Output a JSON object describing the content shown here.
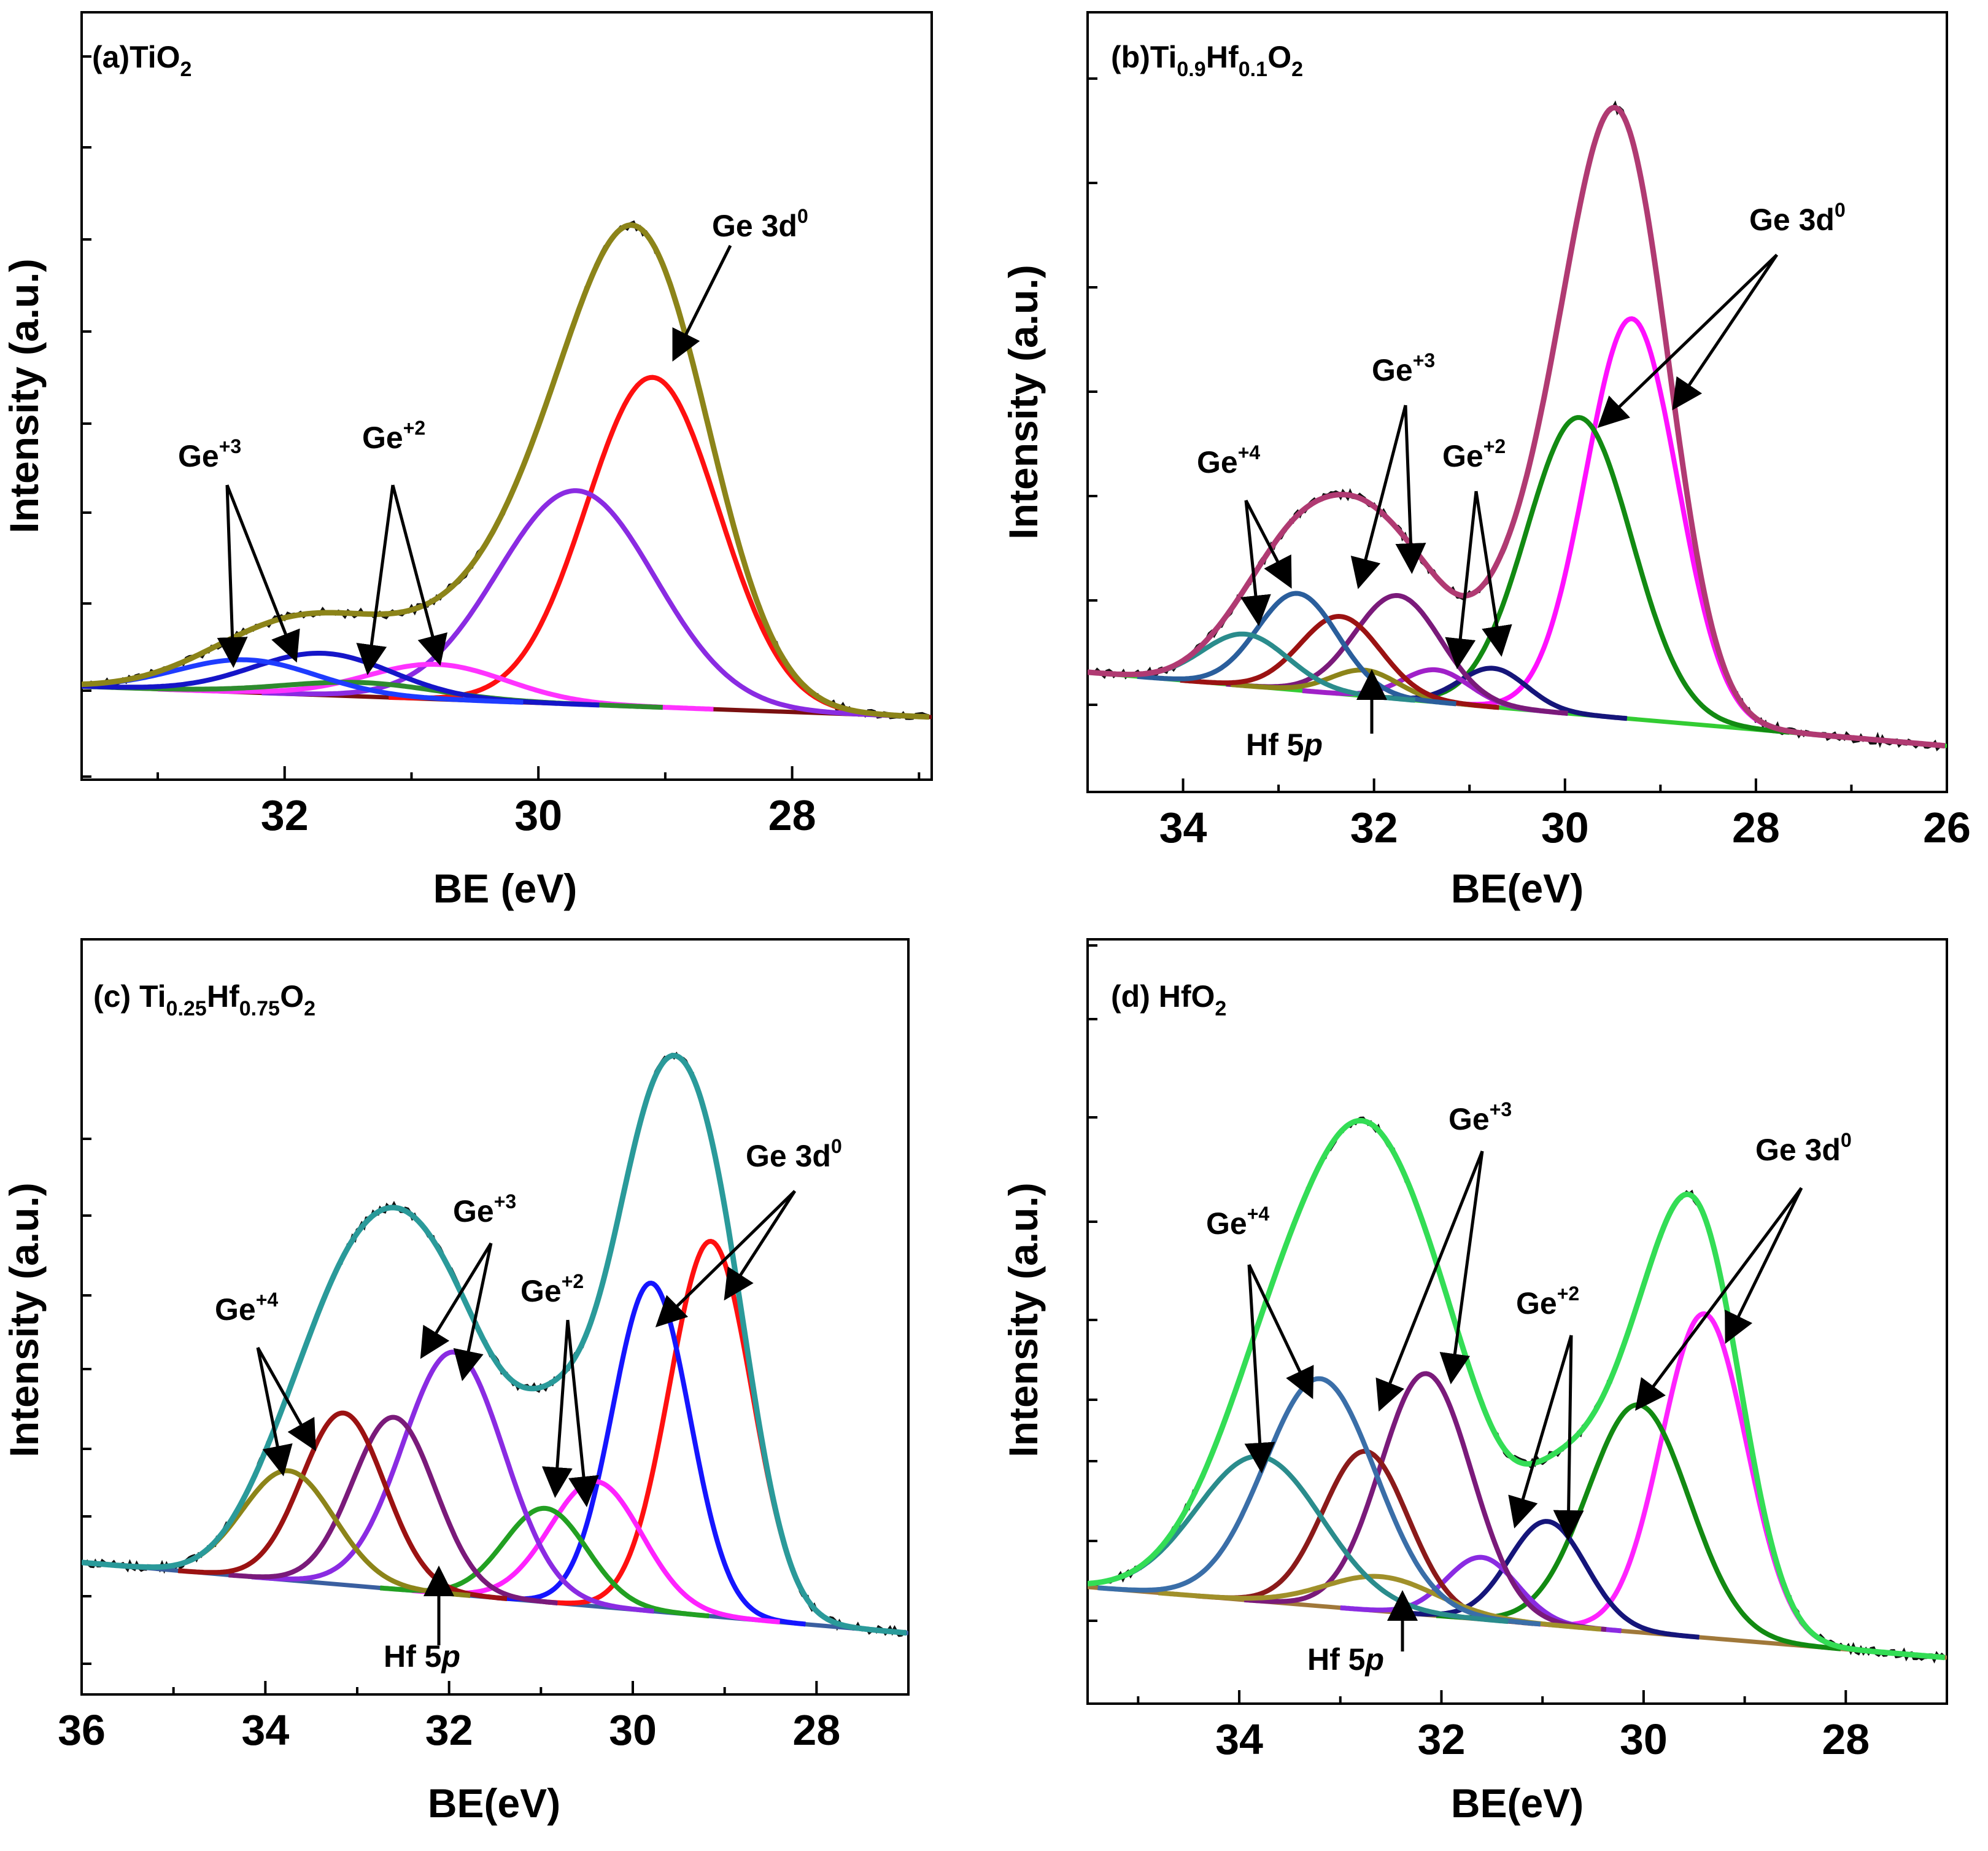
{
  "colors": {
    "data_noise": "#101010",
    "arrow": "#000000",
    "axis": "#000000"
  },
  "chart_data": [
    {
      "type": "line",
      "panel_label": "(a)TiO",
      "panel_label_sub": "2",
      "panel_label_rest": "",
      "xlabel": "BE (eV)",
      "ylabel": "Intensity (a.u.)",
      "xlim": [
        33.6,
        26.9
      ],
      "ylim": [
        0,
        100
      ],
      "xticks": [
        32,
        30,
        28
      ],
      "grid": false,
      "baseline_color": "#7a1010",
      "envelope": {
        "name": "Envelope",
        "color": "#8c8419"
      },
      "components": [
        {
          "name": "Ge 3d0",
          "center": 29.1,
          "amplitude": 71,
          "sigma": 0.52,
          "color": "#ff1010"
        },
        {
          "name": "Ge 3d0 b",
          "center": 29.7,
          "amplitude": 46,
          "sigma": 0.62,
          "color": "#8a2be2"
        },
        {
          "name": "Ge+2 a",
          "center": 30.8,
          "amplitude": 7.5,
          "sigma": 0.55,
          "color": "#ff33ff"
        },
        {
          "name": "Ge+2 b",
          "center": 31.4,
          "amplitude": 3,
          "sigma": 0.6,
          "color": "#2e8b2e"
        },
        {
          "name": "Ge+3 a",
          "center": 31.7,
          "amplitude": 9,
          "sigma": 0.55,
          "color": "#1515c8"
        },
        {
          "name": "Ge+3 b",
          "center": 32.3,
          "amplitude": 7,
          "sigma": 0.55,
          "color": "#1e3cff"
        }
      ],
      "annotations": [
        {
          "text": "Ge 3d",
          "sup": "0"
        },
        {
          "text": "Ge",
          "sup": "+3"
        },
        {
          "text": "Ge",
          "sup": "+2"
        }
      ]
    },
    {
      "type": "line",
      "panel_label": "(b)Ti",
      "panel_label_sub": "0.9",
      "panel_label_rest": "Hf",
      "panel_label_sub2": "0.1",
      "panel_label_rest2": "O",
      "panel_label_sub3": "2",
      "xlabel": "BE(eV)",
      "ylabel": "Intensity (a.u.)",
      "xlim": [
        35,
        26
      ],
      "ylim": [
        0,
        100
      ],
      "xticks": [
        34,
        32,
        30,
        28,
        26
      ],
      "grid": false,
      "baseline_color": "#33cc33",
      "envelope": {
        "name": "Envelope",
        "color": "#b03a72"
      },
      "components": [
        {
          "name": "Ge 3d0 a",
          "center": 29.3,
          "amplitude": 62,
          "sigma": 0.48,
          "color": "#ff10ff"
        },
        {
          "name": "Ge 3d0 b",
          "center": 29.85,
          "amplitude": 46,
          "sigma": 0.55,
          "color": "#128a12"
        },
        {
          "name": "Ge+2 a",
          "center": 30.75,
          "amplitude": 6,
          "sigma": 0.35,
          "color": "#15157a"
        },
        {
          "name": "Ge+2 b",
          "center": 31.35,
          "amplitude": 5,
          "sigma": 0.35,
          "color": "#a020c8"
        },
        {
          "name": "Ge+3 a",
          "center": 31.75,
          "amplitude": 16,
          "sigma": 0.45,
          "color": "#7a1a7a"
        },
        {
          "name": "Hf 5p",
          "center": 32.1,
          "amplitude": 4,
          "sigma": 0.35,
          "color": "#8c8419"
        },
        {
          "name": "Ge+3 b",
          "center": 32.35,
          "amplitude": 12,
          "sigma": 0.42,
          "color": "#9b1212"
        },
        {
          "name": "Ge+4 a",
          "center": 32.8,
          "amplitude": 15,
          "sigma": 0.42,
          "color": "#2a5e9c"
        },
        {
          "name": "Ge+4 b",
          "center": 33.35,
          "amplitude": 8,
          "sigma": 0.45,
          "color": "#2a8c8c"
        }
      ],
      "annotations": [
        {
          "text": "Ge 3d",
          "sup": "0"
        },
        {
          "text": "Ge",
          "sup": "+3"
        },
        {
          "text": "Ge",
          "sup": "+4"
        },
        {
          "text": "Ge",
          "sup": "+2"
        },
        {
          "text": "Hf 5",
          "italic": "p"
        }
      ]
    },
    {
      "type": "line",
      "panel_label": "(c) Ti",
      "panel_label_sub": "0.25",
      "panel_label_rest": "Hf",
      "panel_label_sub2": "0.75",
      "panel_label_rest2": "O",
      "panel_label_sub3": "2",
      "xlabel": "BE(eV)",
      "ylabel": "Intensity (a.u.)",
      "xlim": [
        36,
        27
      ],
      "ylim": [
        0,
        100
      ],
      "xticks": [
        36,
        34,
        32,
        30,
        28
      ],
      "grid": false,
      "baseline_color": "#3a5fa0",
      "envelope": {
        "name": "Envelope",
        "color": "#2a9a9a"
      },
      "components": [
        {
          "name": "Ge 3d0 a",
          "center": 29.15,
          "amplitude": 48,
          "sigma": 0.45,
          "color": "#ff1010"
        },
        {
          "name": "Ge 3d0 b",
          "center": 29.8,
          "amplitude": 42,
          "sigma": 0.42,
          "color": "#1515ff"
        },
        {
          "name": "Ge+2 a",
          "center": 30.4,
          "amplitude": 16,
          "sigma": 0.5,
          "color": "#ff22ff"
        },
        {
          "name": "Ge+2 b",
          "center": 30.95,
          "amplitude": 12,
          "sigma": 0.45,
          "color": "#22a022"
        },
        {
          "name": "Ge+3 a",
          "center": 31.95,
          "amplitude": 31,
          "sigma": 0.55,
          "color": "#8a2be2"
        },
        {
          "name": "Ge+3 b",
          "center": 32.6,
          "amplitude": 22,
          "sigma": 0.45,
          "color": "#7a1a7a"
        },
        {
          "name": "Ge+4 a",
          "center": 33.15,
          "amplitude": 22,
          "sigma": 0.45,
          "color": "#9b1212"
        },
        {
          "name": "Ge+4 b",
          "center": 33.75,
          "amplitude": 14,
          "sigma": 0.5,
          "color": "#8c8419"
        }
      ],
      "annotations": [
        {
          "text": "Ge 3d",
          "sup": "0"
        },
        {
          "text": "Ge",
          "sup": "+3"
        },
        {
          "text": "Ge",
          "sup": "+4"
        },
        {
          "text": "Ge",
          "sup": "+2"
        },
        {
          "text": "Hf 5",
          "italic": "p"
        }
      ]
    },
    {
      "type": "line",
      "panel_label": "(d) HfO",
      "panel_label_sub": "2",
      "panel_label_rest": "",
      "xlabel": "BE(eV)",
      "ylabel": "Intensity (a.u.)",
      "xlim": [
        35.5,
        27
      ],
      "ylim": [
        0,
        100
      ],
      "xticks": [
        34,
        32,
        30,
        28
      ],
      "grid": false,
      "baseline_color": "#a0783a",
      "envelope": {
        "name": "Envelope",
        "color": "#33dd55"
      },
      "components": [
        {
          "name": "Ge 3d0 a",
          "center": 29.4,
          "amplitude": 47,
          "sigma": 0.42,
          "color": "#ff22ff"
        },
        {
          "name": "Ge 3d0 b",
          "center": 30.05,
          "amplitude": 33,
          "sigma": 0.5,
          "color": "#128a12"
        },
        {
          "name": "Ge+2 a",
          "center": 30.95,
          "amplitude": 15,
          "sigma": 0.38,
          "color": "#15157a"
        },
        {
          "name": "Ge+2 b",
          "center": 31.6,
          "amplitude": 9,
          "sigma": 0.35,
          "color": "#8a2be2"
        },
        {
          "name": "Ge+3 a",
          "center": 32.15,
          "amplitude": 35,
          "sigma": 0.45,
          "color": "#7a1a7a"
        },
        {
          "name": "Ge+3 b",
          "center": 32.75,
          "amplitude": 23,
          "sigma": 0.42,
          "color": "#8b1a1a"
        },
        {
          "name": "Hf 5p",
          "center": 32.6,
          "amplitude": 5,
          "sigma": 0.55,
          "color": "#a0902a"
        },
        {
          "name": "Ge+4 a",
          "center": 33.2,
          "amplitude": 33,
          "sigma": 0.55,
          "color": "#3a6ea8"
        },
        {
          "name": "Ge+4 b",
          "center": 33.8,
          "amplitude": 21,
          "sigma": 0.62,
          "color": "#2a8c8c"
        }
      ],
      "annotations": [
        {
          "text": "Ge 3d",
          "sup": "0"
        },
        {
          "text": "Ge",
          "sup": "+3"
        },
        {
          "text": "Ge",
          "sup": "+4"
        },
        {
          "text": "Ge",
          "sup": "+2"
        },
        {
          "text": "Hf 5",
          "italic": "p"
        }
      ]
    }
  ]
}
